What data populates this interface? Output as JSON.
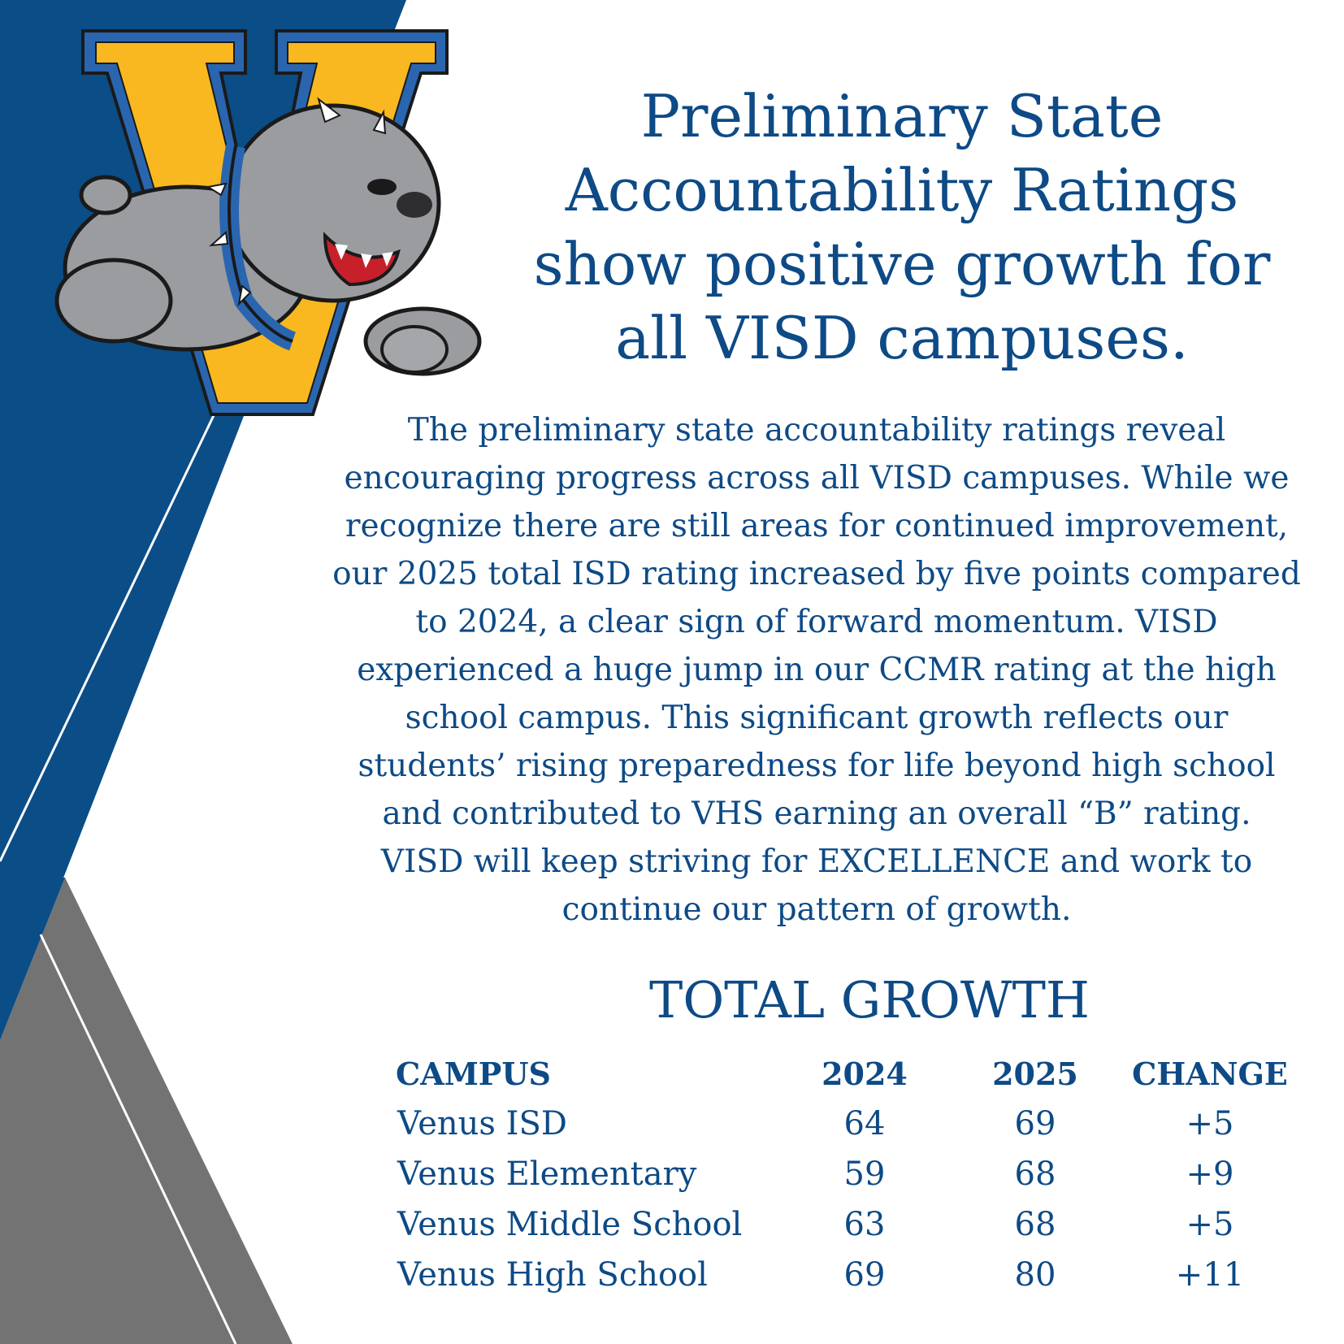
{
  "colors": {
    "navy": "#0d4a86",
    "gray_band": "#737373",
    "gold": "#f9b81f",
    "white": "#ffffff"
  },
  "logo": {
    "description_icon": "bulldog-v-mascot-icon"
  },
  "headline": {
    "lines": [
      "Preliminary State",
      "Accountability Ratings",
      "show positive growth for",
      "all VISD campuses."
    ]
  },
  "body": {
    "lines": [
      "The preliminary state accountability ratings reveal",
      "encouraging progress across all VISD campuses. While we",
      "recognize there are still areas for continued improvement,",
      "our 2025 total ISD rating increased by five points compared",
      "to 2024, a clear sign of forward momentum. VISD",
      "experienced a huge jump in our CCMR rating at the high",
      "school campus. This significant growth reflects our",
      "students’ rising preparedness for life beyond high school",
      "and contributed to VHS earning an overall “B” rating.",
      "VISD will keep striving for EXCELLENCE and work to",
      "continue our pattern of growth."
    ]
  },
  "growth": {
    "title": "TOTAL GROWTH",
    "headers": [
      "CAMPUS",
      "2024",
      "2025",
      "CHANGE"
    ],
    "rows": [
      [
        "Venus ISD",
        "64",
        "69",
        "+5"
      ],
      [
        "Venus Elementary",
        "59",
        "68",
        "+9"
      ],
      [
        "Venus Middle School",
        "63",
        "68",
        "+5"
      ],
      [
        "Venus High School",
        "69",
        "80",
        "+11"
      ]
    ]
  }
}
